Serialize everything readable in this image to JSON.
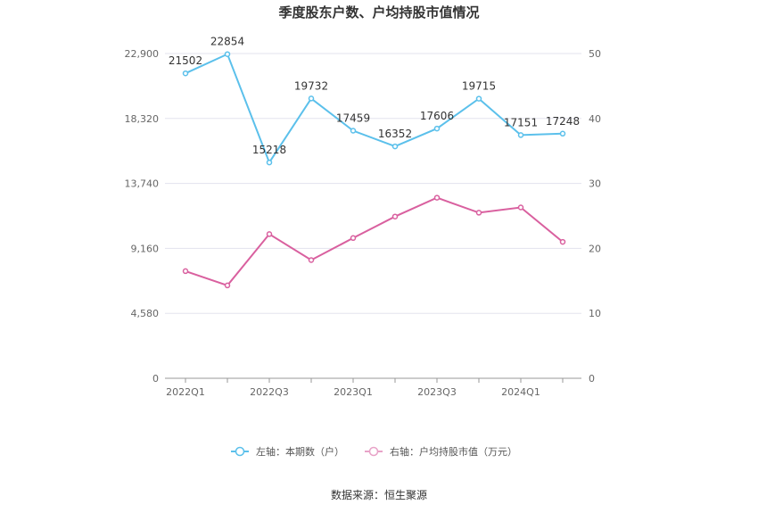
{
  "chart_data": {
    "type": "line",
    "title": "季度股东户数、户均持股市值情况",
    "categories": [
      "2022Q1",
      "2022Q2",
      "2022Q3",
      "2022Q4",
      "2023Q1",
      "2023Q2",
      "2023Q3",
      "2023Q4",
      "2024Q1",
      "2024Q2"
    ],
    "x_tick_labels": [
      "2022Q1",
      "2022Q3",
      "2023Q1",
      "2023Q3",
      "2024Q1"
    ],
    "left_axis": {
      "ticks": [
        "0",
        "4,580",
        "9,160",
        "13,740",
        "18,320",
        "22,900"
      ],
      "ylim": [
        0,
        22900
      ]
    },
    "right_axis": {
      "ticks": [
        "0",
        "10",
        "20",
        "30",
        "40",
        "50"
      ],
      "ylim": [
        0,
        50
      ]
    },
    "series": [
      {
        "name": "左轴：本期数（户）",
        "axis": "left",
        "color": "#5bc0eb",
        "values": [
          21502,
          22854,
          15218,
          19732,
          17459,
          16352,
          17606,
          19715,
          17151,
          17248
        ],
        "labels": [
          "21502",
          "22854",
          "15218",
          "19732",
          "17459",
          "16352",
          "17606",
          "19715",
          "17151",
          "17248"
        ]
      },
      {
        "name": "右轴：户均持股市值（万元）",
        "axis": "right",
        "color": "#d9609f",
        "values": [
          16.5,
          14.3,
          22.2,
          18.2,
          21.6,
          24.9,
          27.8,
          25.5,
          26.3,
          21.0
        ]
      }
    ],
    "grid": true,
    "legend_position": "bottom"
  },
  "source": "数据来源：恒生聚源"
}
